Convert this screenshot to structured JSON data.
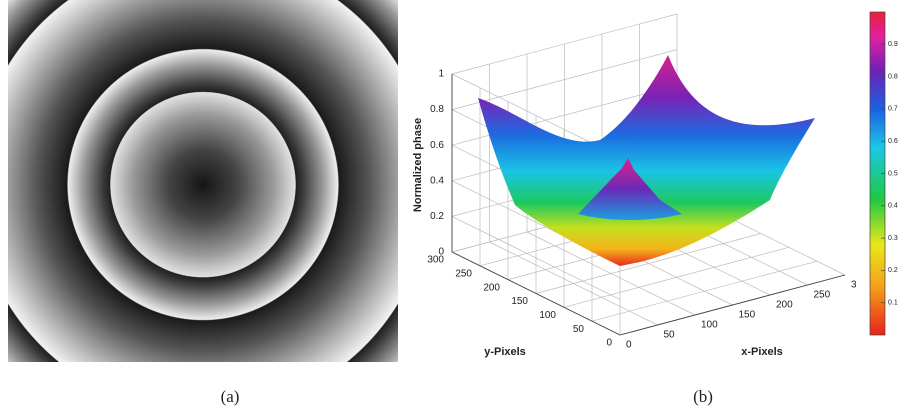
{
  "panels": {
    "a": {
      "label": "(a)"
    },
    "b": {
      "label": "(b)",
      "z_label": "Normalized phase",
      "z_ticks": [
        0,
        0.2,
        0.4,
        0.6,
        0.8,
        1
      ],
      "y_label": "y-Pixels",
      "y_ticks": [
        0,
        50,
        100,
        150,
        200,
        250,
        300
      ],
      "x_label": "x-Pixels",
      "x_ticks": [
        0,
        50,
        100,
        150,
        200,
        250,
        {
          "value": 300,
          "label": "3"
        }
      ],
      "colorbar_ticks": [
        0.1,
        0.2,
        0.3,
        0.4,
        0.5,
        0.6,
        0.7,
        0.8,
        0.9
      ]
    }
  }
}
